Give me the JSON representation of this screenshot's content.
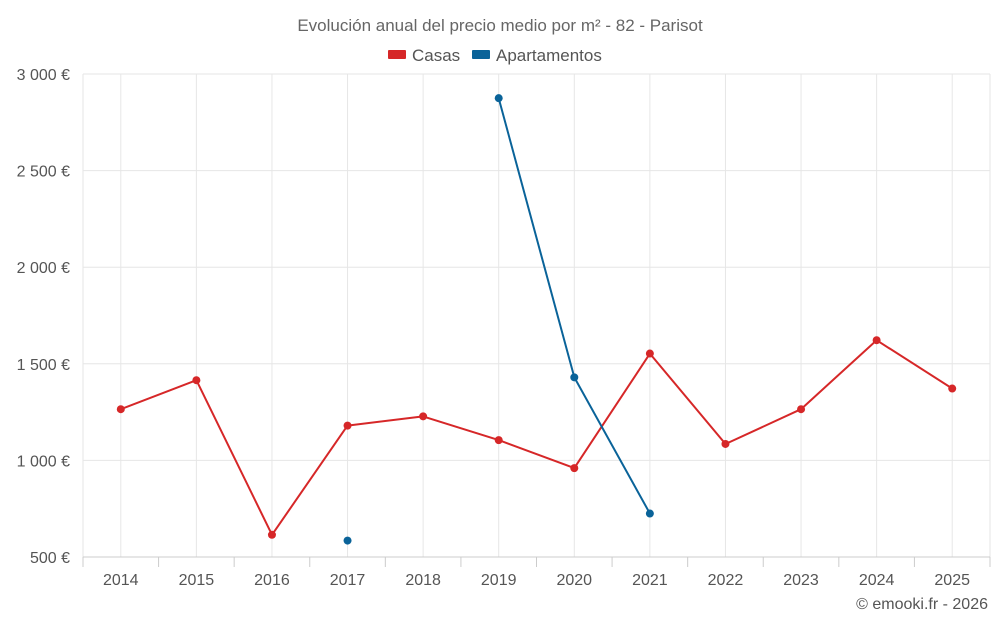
{
  "chart_data": {
    "type": "line",
    "title": "Evolución anual del precio medio por m² - 82 - Parisot",
    "categories": [
      "2014",
      "2015",
      "2016",
      "2017",
      "2018",
      "2019",
      "2020",
      "2021",
      "2022",
      "2023",
      "2024",
      "2025"
    ],
    "series": [
      {
        "name": "Casas",
        "color": "#d62728",
        "values": [
          1265,
          1415,
          615,
          1180,
          1228,
          1105,
          960,
          1553,
          1085,
          1265,
          1622,
          1372
        ]
      },
      {
        "name": "Apartamentos",
        "color": "#0a6399",
        "values": [
          null,
          null,
          null,
          585,
          null,
          2875,
          1430,
          725,
          null,
          null,
          null,
          null
        ]
      }
    ],
    "y_ticks": [
      {
        "value": 500,
        "label": "500 €"
      },
      {
        "value": 1000,
        "label": "1 000 €"
      },
      {
        "value": 1500,
        "label": "1 500 €"
      },
      {
        "value": 2000,
        "label": "2 000 €"
      },
      {
        "value": 2500,
        "label": "2 500 €"
      },
      {
        "value": 3000,
        "label": "3 000 €"
      }
    ],
    "ylim": [
      500,
      3000
    ],
    "xlabel": "",
    "ylabel": "",
    "grid": true,
    "legend_position": "top-center"
  },
  "credit": "© emooki.fr - 2026"
}
